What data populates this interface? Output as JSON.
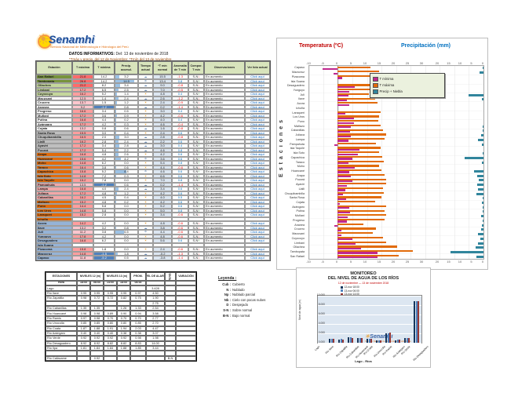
{
  "logo": {
    "name": "Senamhi",
    "tagline": "Servicio Nacional de Meteorología e Hidrología del Perú"
  },
  "info": {
    "line1_label": "DATOS INFORMATIVOS:",
    "line1_value": "Del: 13 de noviembre de 2018",
    "line2": "*Tmáx y precip. del 12 de Noviembre; *Tmín del 13 de noviembre"
  },
  "main_table": {
    "columns": [
      "Estación",
      "T máxima",
      "T mínima",
      "Precip. acumul.",
      "Tiempo actual",
      "*T mín normal",
      "Anomalía de T mín",
      "Compor. T mín",
      "Observaciones",
      "Ver foto actual"
    ],
    "obs_text": "En aumento",
    "link_text": "Click aquí",
    "group_colors": {
      "g1": "#77933C",
      "g2": "#C4D79B",
      "g0": "#FFFFFF",
      "gy": "#BFBFBF",
      "or": "#E26B0A",
      "pk": "#F2A7A7",
      "bl": "#95B3D7"
    },
    "rows": [
      [
        "San Rafael",
        "g1",
        21.8,
        14.2,
        3.2,
        "☁",
        15.5,
        -1.3,
        "dn"
      ],
      [
        "Tambopata",
        "g1",
        26.8,
        14.2,
        14.5,
        "☂",
        13.4,
        0.8,
        "up"
      ],
      [
        "Ollachea",
        "g2",
        21.2,
        8.2,
        3.4,
        "☁",
        9.0,
        -0.8,
        "dn"
      ],
      [
        "Limbani",
        "g2",
        17.2,
        6.5,
        2.5,
        "☁",
        7.0,
        -0.5,
        "dn"
      ],
      [
        "Cuyocuyo",
        "g2",
        16.2,
        5.2,
        1.4,
        "☀",
        4.8,
        0.4,
        "up"
      ],
      [
        "Macusani",
        "g0",
        12.5,
        1.4,
        2.4,
        "☁",
        2.6,
        -1.2,
        "dn"
      ],
      [
        "Crucero",
        "g0",
        13.7,
        1.5,
        1.2,
        "☀",
        2.4,
        -0.9,
        "dn"
      ],
      [
        "Ananea",
        "g0",
        9.2,
        -1.2,
        0.8,
        "☁",
        0.2,
        -1.4,
        "dn"
      ],
      [
        "Progreso",
        "g0",
        16.6,
        3.4,
        0.5,
        "☀",
        3.0,
        0.4,
        "up"
      ],
      [
        "Muñani",
        "g0",
        17.2,
        3.6,
        0.9,
        "☀",
        4.2,
        -0.6,
        "dn"
      ],
      [
        "Putina",
        "g0",
        16.8,
        4.4,
        0.2,
        "☀",
        4.0,
        0.4,
        "up"
      ],
      [
        "Azángaro",
        "g0",
        17.2,
        4.2,
        0.3,
        "☀",
        4.6,
        -0.4,
        "dn"
      ],
      [
        "Cojata",
        "g0",
        13.2,
        0.8,
        0.6,
        "☁",
        1.6,
        -0.8,
        "dn"
      ],
      [
        "Santa Rosa",
        "gy",
        15.5,
        3.0,
        0.4,
        "☀",
        2.4,
        0.6,
        "up"
      ],
      [
        "Chuquibambilla",
        "gy",
        16.5,
        2.0,
        3.0,
        "☁",
        2.8,
        -0.8,
        "dn"
      ],
      [
        "Llalli",
        "gy",
        16.2,
        2.8,
        2.4,
        "☁",
        2.2,
        0.6,
        "up"
      ],
      [
        "Ayaviri",
        "gy",
        17.2,
        3.4,
        2.8,
        "☁",
        3.0,
        0.4,
        "up"
      ],
      [
        "Pucará",
        "gy",
        17.2,
        5.4,
        2.2,
        "☁",
        4.6,
        0.8,
        "up"
      ],
      [
        "Arapa",
        "or",
        16.8,
        4.8,
        2.6,
        "☀",
        4.2,
        0.6,
        "up"
      ],
      [
        "Huancané",
        "or",
        15.6,
        4.2,
        4.2,
        "☂",
        3.6,
        0.6,
        "up"
      ],
      [
        "Moho",
        "or",
        14.8,
        6.2,
        0.0,
        "☀",
        5.4,
        0.8,
        "up"
      ],
      [
        "Taraco",
        "or",
        16.4,
        3.8,
        0.6,
        "☀",
        4.4,
        -0.6,
        "dn"
      ],
      [
        "Capachica",
        "or",
        15.8,
        5.2,
        8.4,
        "☂",
        4.6,
        0.6,
        "up"
      ],
      [
        "Isla Soto",
        "or",
        14.8,
        7.2,
        0.3,
        "☀",
        6.6,
        0.6,
        "up"
      ],
      [
        "Isla Taquile",
        "or",
        15.2,
        7.8,
        0.0,
        "☀",
        7.0,
        0.8,
        "up"
      ],
      [
        "Pampahuta",
        "pk",
        13.5,
        -1.2,
        0.6,
        "☁",
        0.2,
        -1.4,
        "dn"
      ],
      [
        "Lampa",
        "pk",
        16.8,
        4.0,
        2.4,
        "☁",
        3.4,
        0.6,
        "up"
      ],
      [
        "Juliaca",
        "pk",
        17.2,
        4.8,
        1.2,
        "☀",
        4.2,
        0.6,
        "up"
      ],
      [
        "Cabanillas",
        "pk",
        16.2,
        4.5,
        0.4,
        "☀",
        4.0,
        0.5,
        "up"
      ],
      [
        "Mañazo",
        "or",
        15.2,
        4.8,
        0.2,
        "☀",
        4.2,
        0.6,
        "up"
      ],
      [
        "Puno",
        "or",
        14.4,
        5.8,
        0.0,
        "☀",
        5.2,
        0.6,
        "up"
      ],
      [
        "Los Uros",
        "or",
        14.8,
        5.8,
        0.0,
        "☀",
        5.0,
        0.8,
        "up"
      ],
      [
        "Laraqueri",
        "or",
        15.2,
        2.8,
        0.0,
        "☀",
        3.4,
        -0.6,
        "dn"
      ],
      [
        "Ichuña",
        "or",
        "",
        "",
        "",
        "",
        "",
        "",
        ""
      ],
      [
        "Acora",
        "bl",
        14.2,
        4.2,
        0.0,
        "☀",
        4.8,
        -0.6,
        "dn"
      ],
      [
        "Ilave",
        "bl",
        13.2,
        3.2,
        0.8,
        "☁",
        3.8,
        -0.6,
        "dn"
      ],
      [
        "Juli",
        "bl",
        11.2,
        3.8,
        6.5,
        "☂",
        4.4,
        -0.6,
        "dn"
      ],
      [
        "Yunguyo",
        "bl",
        17.8,
        4.2,
        0.0,
        "☀",
        4.8,
        -0.6,
        "dn"
      ],
      [
        "Desaguadero",
        "bl",
        16.8,
        6.2,
        0.0,
        "☀",
        5.6,
        0.6,
        "up"
      ],
      [
        "Isla Suana",
        "bl",
        "",
        "",
        "",
        "",
        "",
        "",
        ""
      ],
      [
        "Pizacoma",
        "bl",
        15.8,
        1.8,
        0.0,
        "☀",
        2.4,
        -0.6,
        "dn"
      ],
      [
        "Mazocruz",
        "bl",
        14.8,
        -1.5,
        1.8,
        "☁",
        -0.2,
        -1.3,
        "dn"
      ],
      [
        "Capaso",
        "bl",
        11.8,
        -5.2,
        0.5,
        "☁",
        -3.8,
        -1.4,
        "dn"
      ]
    ]
  },
  "chart_data": [
    {
      "type": "bar",
      "orientation": "horizontal-dual",
      "title_left": "Temperatura (ºC)",
      "title_right": "Precipitación (mm)",
      "ylabel": "Estaciones",
      "legend": [
        {
          "label": "T mínima",
          "color": "#C0278E"
        },
        {
          "label": "T máxima",
          "color": "#E26B0A"
        },
        {
          "label": "Precip + Niebla",
          "color": "#31859C"
        }
      ],
      "axis": {
        "temp_min": -10,
        "temp_max": 30,
        "temp_ticks": [
          -10,
          -5,
          0,
          5,
          10,
          15,
          20,
          25,
          30
        ],
        "precip_max": 25,
        "precip_ticks": [
          20,
          15,
          10,
          5,
          0
        ]
      },
      "grid": true,
      "stations": [
        [
          "Capaso",
          11.8,
          -5.2,
          0.5
        ],
        [
          "Mazocruz",
          14.8,
          -1.5,
          1.8
        ],
        [
          "Pizacoma",
          15.8,
          1.8,
          0
        ],
        [
          "Isla Suana"
        ],
        [
          "Desaguadero",
          16.8,
          6.2,
          0
        ],
        [
          "Yunguyo",
          17.8,
          4.2,
          0
        ],
        [
          "Juli",
          11.2,
          3.8,
          6.5
        ],
        [
          "Ilave",
          13.2,
          3.2,
          0.8
        ],
        [
          "Acora",
          14.2,
          4.2,
          0
        ],
        [
          "Ichuña"
        ],
        [
          "Laraqueri",
          15.2,
          2.8,
          0
        ],
        [
          "Los Uros",
          14.8,
          5.8,
          0
        ],
        [
          "Puno",
          14.4,
          5.8,
          0
        ],
        [
          "Mañazo",
          15.2,
          4.8,
          0.2
        ],
        [
          "Cabanillas",
          16.2,
          4.5,
          0.4
        ],
        [
          "Juliaca",
          17.2,
          4.8,
          1.2
        ],
        [
          "Lampa",
          16.8,
          4.0,
          2.4
        ],
        [
          "Pampahuta",
          13.5,
          -1.2,
          0.6
        ],
        [
          "Isla Taquile",
          15.2,
          7.8,
          0
        ],
        [
          "Isla Soto",
          14.8,
          7.2,
          0.3
        ],
        [
          "Capachica",
          15.8,
          5.2,
          8.4
        ],
        [
          "Taraco",
          16.4,
          3.8,
          0.6
        ],
        [
          "Moho",
          14.8,
          6.2,
          0
        ],
        [
          "Huancané",
          15.6,
          4.2,
          4.2
        ],
        [
          "Arapa",
          16.8,
          4.8,
          2.6
        ],
        [
          "Pucará",
          17.2,
          5.4,
          2.2
        ],
        [
          "Ayaviri",
          17.2,
          3.4,
          2.8
        ],
        [
          "Llalli",
          16.2,
          2.8,
          2.4
        ],
        [
          "Chuquibambilla",
          16.5,
          2.0,
          3.0
        ],
        [
          "Santa Rosa",
          15.5,
          3.0,
          0.4
        ],
        [
          "Cojata",
          13.2,
          0.8,
          0.6
        ],
        [
          "Azángaro",
          17.2,
          4.2,
          0.3
        ],
        [
          "Putina",
          16.8,
          4.4,
          0.2
        ],
        [
          "Muñani",
          17.2,
          3.6,
          0.9
        ],
        [
          "Progreso",
          16.6,
          3.4,
          0.5
        ],
        [
          "Ananea",
          9.2,
          -1.2,
          0.8
        ],
        [
          "Crucero",
          13.7,
          1.5,
          1.2
        ],
        [
          "Macusani",
          12.5,
          1.4,
          2.4
        ],
        [
          "Cuyocuyo",
          16.2,
          5.2,
          1.4
        ],
        [
          "Limbani",
          17.2,
          6.5,
          2.5
        ],
        [
          "Ollachea",
          21.2,
          8.2,
          3.4
        ],
        [
          "Tambopata",
          26.8,
          14.2,
          14.5
        ],
        [
          "San Rafael",
          21.8,
          14.2,
          3.2
        ]
      ]
    },
    {
      "type": "bar",
      "title": "MONITOREO",
      "title2": "DEL NIVEL DE AGUA DE LOS RÍOS",
      "subtitle": "12 de noviembre  —  13 de noviembre 2018",
      "xlabel": "Lago - Ríos",
      "ylabel": "Nivel de agua (m)",
      "ylim": [
        0,
        10
      ],
      "yticks": [
        "10.000",
        "8.000",
        "6.000",
        "4.000",
        "2.000",
        "0.000"
      ],
      "categories": [
        "Lago",
        "Río Ilave",
        "Río Zapatilla",
        "Río Cabanillas",
        "Río Huancané",
        "Río Coata",
        "Río Unocolla",
        "Río Ramis",
        "Río Azángaro",
        "Río Verde",
        "Río Desaguadero"
      ],
      "series": [
        {
          "name": "12-nov 18:00",
          "color": "#16365C",
          "values": [
            0,
            0.8,
            0.75,
            1.1,
            0.95,
            0.8,
            0.55,
            2.03,
            0.58,
            0.95,
            8.83
          ]
        },
        {
          "name": "13-nov 06:00",
          "color": "#4F81BD",
          "values": [
            0,
            0.82,
            0.78,
            1.12,
            0.94,
            0.82,
            0.56,
            2.08,
            0.6,
            0.98,
            8.85
          ]
        },
        {
          "name": "13-nov 14:00",
          "color": "#953735",
          "values": [
            0,
            0.8,
            0.75,
            1.08,
            0.96,
            0.84,
            0.55,
            2.1,
            0.62,
            1.0,
            8.8
          ]
        }
      ],
      "legend_position": "top"
    }
  ],
  "river_table": {
    "col_groups": [
      "ESTACIONES",
      "NIVELES 12 (m)",
      "NIVELES 13 (m)",
      "PROM.",
      "NIVEL DE ALARMA",
      "TEND.",
      "VARIACIÓN"
    ],
    "hours": [
      "Hora",
      "18:00",
      "06:00",
      "14:00",
      "18:00",
      "06:00",
      "",
      "",
      ""
    ],
    "rows": [
      [
        "Lago",
        "",
        "",
        "",
        "",
        "",
        "3.428",
        "",
        ""
      ],
      [
        "Río Ilave",
        "0.95",
        "0.95",
        "0.95",
        "0.95",
        "0.97",
        "4.50",
        "",
        ""
      ],
      [
        "Río Zapatilla",
        "0.98",
        "0.72",
        "0.72",
        "0.82",
        "0.75",
        "1.90",
        "",
        ""
      ],
      [
        "",
        "",
        "",
        "",
        "",
        "",
        "2.75",
        "",
        ""
      ],
      [
        "Río Cabanillas",
        "1.35",
        "1.35",
        "",
        "1.26",
        "1.33",
        "2.54",
        "",
        ""
      ],
      [
        "Río Huancané",
        "0.98",
        "0.98",
        "0.89",
        "0.90",
        "0.94",
        "3.58",
        "",
        ""
      ],
      [
        "Río Ramis",
        "0.97",
        "0.98",
        "0.70",
        "0.70",
        "0.70",
        "2.77",
        "",
        ""
      ],
      [
        "Río Unocolla",
        "0.85",
        "0.85",
        "0.80",
        "0.80",
        "0.85",
        "2.70",
        "",
        ""
      ],
      [
        "Río Coata",
        "1.87",
        "1.88",
        "1.91",
        "1.94",
        "2.03",
        "4.47",
        "",
        ""
      ],
      [
        "Río Azángaro",
        "0.40",
        "0.40",
        "0.40",
        "0.38",
        "0.38",
        "3.07",
        "",
        ""
      ],
      [
        "Río Verde",
        "0.92",
        "0.92",
        "0.92",
        "0.92",
        "0.98",
        "1.98",
        "",
        ""
      ],
      [
        "Río Desaguadero",
        "8.92",
        "8.92",
        "8.82",
        "8.82",
        "8.83",
        "14.00",
        "",
        ""
      ],
      [
        "Río Ilpa",
        "1.81",
        "1.84",
        "1.84",
        "1.88",
        "1.85",
        "3.44",
        "",
        ""
      ],
      [
        "",
        "",
        "",
        "",
        "",
        "",
        "",
        "",
        ""
      ],
      [
        "Río Callacame",
        "",
        "0.92",
        "",
        "",
        "",
        "",
        "B-N",
        ""
      ]
    ]
  },
  "leyenda": {
    "title": "Leyenda :",
    "items": [
      {
        "key": "Cub",
        "text": "Cubierto"
      },
      {
        "key": "N",
        "text": "Nublado"
      },
      {
        "key": "Np",
        "text": "Nublado parcial"
      },
      {
        "key": "Nb",
        "text": "Cielo con pocas nubes"
      },
      {
        "key": "D",
        "text": "Despejado"
      },
      {
        "key": "S-N",
        "text": "Sobre normal"
      },
      {
        "key": "B-N",
        "text": "Bajo normal"
      }
    ]
  }
}
